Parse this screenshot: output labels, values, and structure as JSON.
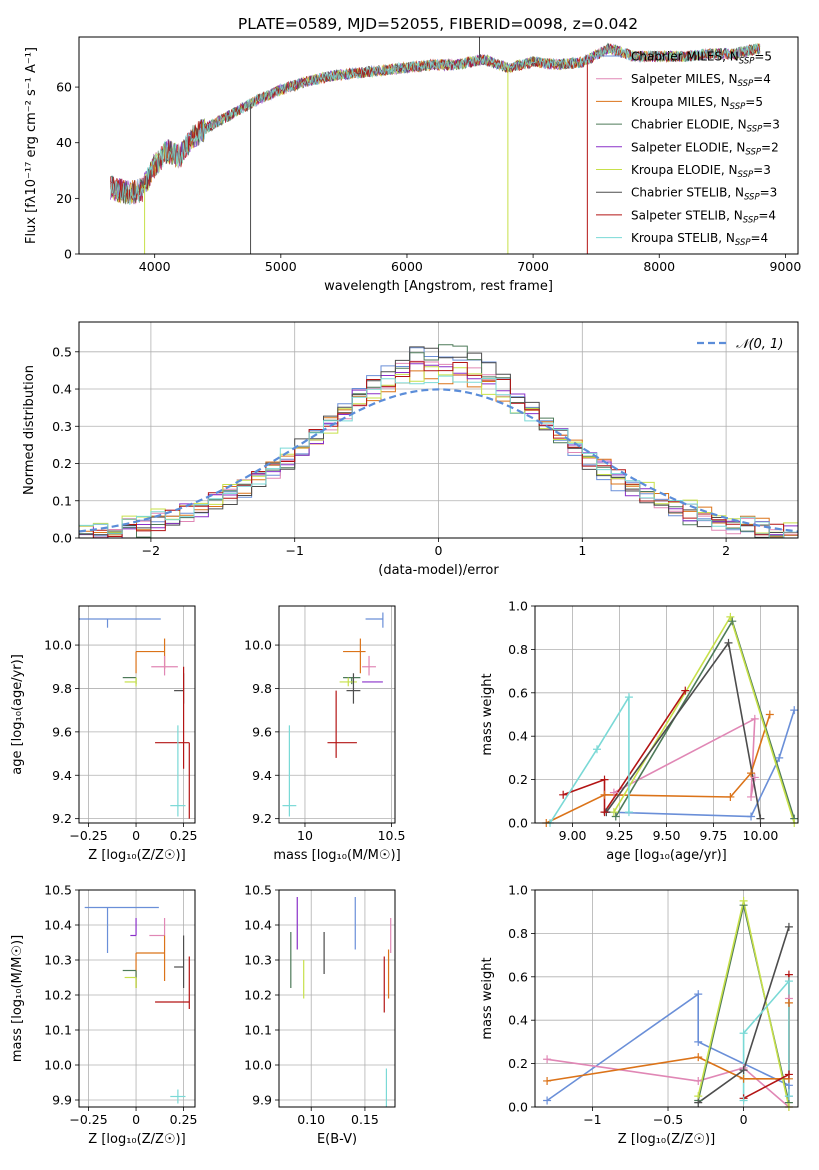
{
  "title": "PLATE=0589, MJD=52055, FIBERID=0098, z=0.042",
  "colors": {
    "Chabrier MILES": "#6a8fd8",
    "Salpeter MILES": "#e087b5",
    "Kroupa MILES": "#db7319",
    "Chabrier ELODIE": "#4d7a59",
    "Salpeter ELODIE": "#8a30c9",
    "Kroupa ELODIE": "#c7e04a",
    "Chabrier STELIB": "#4d4d4d",
    "Salpeter STELIB": "#b31414",
    "Kroupa STELIB": "#7ad9d6",
    "normal_curve": "#5b8dd9",
    "grid": "#b0b0b0"
  },
  "legend_spectrum": [
    {
      "label": "Chabrier MILES, N",
      "sub": "SSP",
      "suffix": "=5",
      "model": "Chabrier MILES"
    },
    {
      "label": "Salpeter MILES, N",
      "sub": "SSP",
      "suffix": "=4",
      "model": "Salpeter MILES"
    },
    {
      "label": "Kroupa MILES, N",
      "sub": "SSP",
      "suffix": "=5",
      "model": "Kroupa MILES"
    },
    {
      "label": "Chabrier ELODIE, N",
      "sub": "SSP",
      "suffix": "=3",
      "model": "Chabrier ELODIE"
    },
    {
      "label": "Salpeter ELODIE, N",
      "sub": "SSP",
      "suffix": "=2",
      "model": "Salpeter ELODIE"
    },
    {
      "label": "Kroupa ELODIE, N",
      "sub": "SSP",
      "suffix": "=3",
      "model": "Kroupa ELODIE"
    },
    {
      "label": "Chabrier STELIB, N",
      "sub": "SSP",
      "suffix": "=3",
      "model": "Chabrier STELIB"
    },
    {
      "label": "Salpeter STELIB, N",
      "sub": "SSP",
      "suffix": "=4",
      "model": "Salpeter STELIB"
    },
    {
      "label": "Kroupa STELIB, N",
      "sub": "SSP",
      "suffix": "=4",
      "model": "Kroupa STELIB"
    }
  ],
  "chart_data": [
    {
      "id": "spectrum",
      "type": "line",
      "xlabel": "wavelength [Angstrom, rest frame]",
      "ylabel": "Flux [fλ10⁻¹⁷ erg cm⁻² s⁻¹ A⁻¹]",
      "xlim": [
        3400,
        9100
      ],
      "ylim": [
        0,
        78
      ],
      "xticks": [
        4000,
        5000,
        6000,
        7000,
        8000,
        9000
      ],
      "yticks": [
        0,
        20,
        40,
        60
      ],
      "grid": false,
      "legend_position": "top-right",
      "continuum": {
        "x": [
          3650,
          3700,
          3800,
          3900,
          4000,
          4100,
          4200,
          4300,
          4400,
          4600,
          4800,
          5000,
          5200,
          5400,
          5600,
          5800,
          6000,
          6200,
          6400,
          6600,
          6800,
          7000,
          7200,
          7400,
          7600,
          7800,
          8000,
          8200,
          8400,
          8600,
          8800
        ],
        "y": [
          24,
          23,
          22,
          23,
          32,
          37,
          35,
          42,
          45,
          50,
          55,
          59,
          62,
          64,
          65,
          66,
          67,
          68,
          68,
          70,
          67,
          69,
          68,
          69,
          74,
          71,
          71,
          71,
          72,
          72,
          74
        ]
      },
      "dips": [
        {
          "model": "Kroupa ELODIE",
          "x": 3920,
          "y": 0
        },
        {
          "model": "Chabrier STELIB",
          "x": 4760,
          "y": 0
        },
        {
          "model": "Kroupa ELODIE",
          "x": 6800,
          "y": 0
        },
        {
          "model": "Salpeter STELIB",
          "x": 7430,
          "y": 0
        },
        {
          "model": "Chabrier STELIB",
          "x": 6575,
          "y": 78
        }
      ]
    },
    {
      "id": "residuals",
      "type": "histogram",
      "xlabel": "(data-model)/error",
      "ylabel": "Normed distribution",
      "xlim": [
        -2.5,
        2.5
      ],
      "ylim": [
        0,
        0.58
      ],
      "xticks": [
        -2,
        -1,
        0,
        1,
        2
      ],
      "yticks": [
        0.0,
        0.1,
        0.2,
        0.3,
        0.4,
        0.5
      ],
      "grid": true,
      "legend": "𝒩(0, 1)",
      "legend_position": "top-right",
      "normal_curve": {
        "mean": 0,
        "sigma": 1
      }
    },
    {
      "id": "age_vs_Z",
      "type": "errorbar",
      "xlabel": "Z [log₁₀(Z/Z☉)]",
      "ylabel": "age  [log₁₀(age/yr)]",
      "xlim": [
        -0.3,
        0.31
      ],
      "ylim": [
        9.18,
        10.18
      ],
      "xticks": [
        -0.25,
        0.0,
        0.25
      ],
      "yticks": [
        9.2,
        9.4,
        9.6,
        9.8,
        10.0
      ],
      "grid": true,
      "points": [
        {
          "model": "Chabrier MILES",
          "x": -0.15,
          "xerr": [
            0.27,
            0.28
          ],
          "y": 10.12,
          "yerr": [
            0.04,
            0.0
          ]
        },
        {
          "model": "Kroupa MILES",
          "x": 0.0,
          "xerr": [
            0.0,
            0.15
          ],
          "y": 9.97,
          "yerr": [
            0.1,
            0.0
          ]
        },
        {
          "model": "Kroupa MILES",
          "x": 0.15,
          "xerr": [
            0.0,
            0.0
          ],
          "y": 9.97,
          "yerr": [
            0.08,
            0.06
          ]
        },
        {
          "model": "Salpeter MILES",
          "x": 0.15,
          "xerr": [
            0.07,
            0.07
          ],
          "y": 9.9,
          "yerr": [
            0.04,
            0.05
          ]
        },
        {
          "model": "Chabrier ELODIE",
          "x": 0.0,
          "xerr": [
            0.07,
            0.0
          ],
          "y": 9.85,
          "yerr": [
            0.03,
            0.0
          ]
        },
        {
          "model": "Kroupa ELODIE",
          "x": 0.0,
          "xerr": [
            0.06,
            0.0
          ],
          "y": 9.83,
          "yerr": [
            0.02,
            0.02
          ]
        },
        {
          "model": "Chabrier STELIB",
          "x": 0.25,
          "xerr": [
            0.05,
            0.0
          ],
          "y": 9.79,
          "yerr": [
            0.06,
            0.08
          ]
        },
        {
          "model": "Salpeter STELIB",
          "x": 0.25,
          "xerr": [
            0.15,
            0.03
          ],
          "y": 9.55,
          "yerr": [
            0.12,
            0.35
          ]
        },
        {
          "model": "Salpeter STELIB",
          "x": 0.28,
          "xerr": [
            0.0,
            0.0
          ],
          "y": 9.55,
          "yerr": [
            0.35,
            0.0
          ]
        },
        {
          "model": "Kroupa STELIB",
          "x": 0.22,
          "xerr": [
            0.04,
            0.04
          ],
          "y": 9.26,
          "yerr": [
            0.05,
            0.37
          ]
        }
      ]
    },
    {
      "id": "age_vs_mass",
      "type": "errorbar",
      "xlabel": "mass [log₁₀(M/M☉)]",
      "ylabel": "",
      "xlim": [
        9.85,
        10.52
      ],
      "ylim": [
        9.18,
        10.18
      ],
      "xticks": [
        10.0,
        10.5
      ],
      "yticks": [
        9.2,
        9.4,
        9.6,
        9.8,
        10.0
      ],
      "grid": true,
      "points": [
        {
          "model": "Chabrier MILES",
          "x": 10.45,
          "xerr": [
            0.1,
            0.0
          ],
          "y": 10.12,
          "yerr": [
            0.04,
            0.03
          ]
        },
        {
          "model": "Kroupa MILES",
          "x": 10.32,
          "xerr": [
            0.1,
            0.03
          ],
          "y": 9.97,
          "yerr": [
            0.1,
            0.06
          ]
        },
        {
          "model": "Salpeter MILES",
          "x": 10.37,
          "xerr": [
            0.04,
            0.04
          ],
          "y": 9.9,
          "yerr": [
            0.04,
            0.05
          ]
        },
        {
          "model": "Salpeter ELODIE",
          "x": 10.37,
          "xerr": [
            0.04,
            0.08
          ],
          "y": 9.83,
          "yerr": [
            0.0,
            0.0
          ]
        },
        {
          "model": "Chabrier ELODIE",
          "x": 10.27,
          "xerr": [
            0.05,
            0.05
          ],
          "y": 9.85,
          "yerr": [
            0.03,
            0.0
          ]
        },
        {
          "model": "Kroupa ELODIE",
          "x": 10.25,
          "xerr": [
            0.05,
            0.05
          ],
          "y": 9.83,
          "yerr": [
            0.02,
            0.02
          ]
        },
        {
          "model": "Chabrier STELIB",
          "x": 10.28,
          "xerr": [
            0.04,
            0.04
          ],
          "y": 9.79,
          "yerr": [
            0.06,
            0.08
          ]
        },
        {
          "model": "Salpeter STELIB",
          "x": 10.18,
          "xerr": [
            0.05,
            0.12
          ],
          "y": 9.55,
          "yerr": [
            0.07,
            0.24
          ]
        },
        {
          "model": "Kroupa STELIB",
          "x": 9.91,
          "xerr": [
            0.04,
            0.04
          ],
          "y": 9.26,
          "yerr": [
            0.05,
            0.37
          ]
        }
      ]
    },
    {
      "id": "massweight_vs_age",
      "type": "line",
      "xlabel": "age  [log₁₀(age/yr)]",
      "ylabel": "mass weight",
      "xlim": [
        8.8,
        10.2
      ],
      "ylim": [
        0,
        1.0
      ],
      "xticks": [
        9.0,
        9.25,
        9.5,
        9.75,
        10.0
      ],
      "xtick_labels": [
        "9.00",
        "9.25",
        "9.50",
        "9.75",
        "10.00"
      ],
      "yticks": [
        0.0,
        0.2,
        0.4,
        0.6,
        0.8,
        1.0
      ],
      "grid": true,
      "series": [
        {
          "model": "Chabrier MILES",
          "x": [
            9.18,
            9.95,
            10.1,
            10.18
          ],
          "y": [
            0.05,
            0.03,
            0.3,
            0.52
          ]
        },
        {
          "model": "Salpeter MILES",
          "x": [
            9.22,
            9.97,
            9.95,
            9.97
          ],
          "y": [
            0.14,
            0.48,
            0.12,
            0.21
          ]
        },
        {
          "model": "Kroupa MILES",
          "x": [
            8.86,
            9.17,
            9.84,
            9.95,
            10.05
          ],
          "y": [
            0.0,
            0.13,
            0.12,
            0.23,
            0.5
          ]
        },
        {
          "model": "Chabrier ELODIE",
          "x": [
            9.23,
            9.85,
            10.18
          ],
          "y": [
            0.03,
            0.93,
            0.02
          ]
        },
        {
          "model": "Kroupa ELODIE",
          "x": [
            9.22,
            9.84,
            10.18
          ],
          "y": [
            0.05,
            0.95,
            0.0
          ]
        },
        {
          "model": "Chabrier STELIB",
          "x": [
            9.18,
            9.83,
            10.0
          ],
          "y": [
            0.05,
            0.83,
            0.02
          ]
        },
        {
          "model": "Salpeter STELIB",
          "x": [
            8.95,
            9.17,
            9.17,
            9.6
          ],
          "y": [
            0.13,
            0.2,
            0.05,
            0.61
          ]
        },
        {
          "model": "Kroupa STELIB",
          "x": [
            8.88,
            9.13,
            9.3,
            9.3
          ],
          "y": [
            0.0,
            0.34,
            0.58,
            0.05
          ]
        }
      ]
    },
    {
      "id": "mass_vs_Z",
      "type": "errorbar",
      "xlabel": "Z [log₁₀(Z/Z☉)]",
      "ylabel": "mass [log₁₀(M/M☉)]",
      "xlim": [
        -0.3,
        0.31
      ],
      "ylim": [
        9.88,
        10.5
      ],
      "xticks": [
        -0.25,
        0.0,
        0.25
      ],
      "yticks": [
        9.9,
        10.0,
        10.1,
        10.2,
        10.3,
        10.4,
        10.5
      ],
      "grid": true,
      "points": [
        {
          "model": "Chabrier MILES",
          "x": -0.15,
          "xerr": [
            0.12,
            0.27
          ],
          "y": 10.45,
          "yerr": [
            0.13,
            0.0
          ]
        },
        {
          "model": "Salpeter MILES",
          "x": 0.15,
          "xerr": [
            0.08,
            0.0
          ],
          "y": 10.37,
          "yerr": [
            0.0,
            0.05
          ]
        },
        {
          "model": "Kroupa MILES",
          "x": 0.0,
          "xerr": [
            0.0,
            0.15
          ],
          "y": 10.32,
          "yerr": [
            0.1,
            0.0
          ]
        },
        {
          "model": "Kroupa MILES",
          "x": 0.15,
          "xerr": [
            0.0,
            0.0
          ],
          "y": 10.32,
          "yerr": [
            0.08,
            0.05
          ]
        },
        {
          "model": "Salpeter ELODIE",
          "x": 0.0,
          "xerr": [
            0.03,
            0.0
          ],
          "y": 10.37,
          "yerr": [
            0.0,
            0.05
          ]
        },
        {
          "model": "Chabrier ELODIE",
          "x": 0.0,
          "xerr": [
            0.07,
            0.0
          ],
          "y": 10.27,
          "yerr": [
            0.05,
            0.0
          ]
        },
        {
          "model": "Kroupa ELODIE",
          "x": 0.0,
          "xerr": [
            0.06,
            0.0
          ],
          "y": 10.25,
          "yerr": [
            0.03,
            0.0
          ]
        },
        {
          "model": "Chabrier STELIB",
          "x": 0.25,
          "xerr": [
            0.05,
            0.0
          ],
          "y": 10.28,
          "yerr": [
            0.06,
            0.09
          ]
        },
        {
          "model": "Salpeter STELIB",
          "x": 0.25,
          "xerr": [
            0.15,
            0.03
          ],
          "y": 10.18,
          "yerr": [
            0.0,
            0.0
          ]
        },
        {
          "model": "Salpeter STELIB",
          "x": 0.28,
          "xerr": [
            0.0,
            0.0
          ],
          "y": 10.18,
          "yerr": [
            0.02,
            0.13
          ]
        },
        {
          "model": "Kroupa STELIB",
          "x": 0.22,
          "xerr": [
            0.04,
            0.04
          ],
          "y": 9.91,
          "yerr": [
            0.02,
            0.02
          ]
        }
      ]
    },
    {
      "id": "mass_vs_EBV",
      "type": "errorbar",
      "xlabel": "E(B-V)",
      "ylabel": "",
      "xlim": [
        0.07,
        0.178
      ],
      "ylim": [
        9.88,
        10.5
      ],
      "xticks": [
        0.1,
        0.15
      ],
      "xtick_labels": [
        "0.10",
        "0.15"
      ],
      "yticks": [
        9.9,
        10.0,
        10.1,
        10.2,
        10.3,
        10.4,
        10.5
      ],
      "grid": true,
      "points": [
        {
          "model": "Chabrier ELODIE",
          "x": 0.081,
          "yerr": [
            0.06,
            0.1
          ],
          "y": 10.28
        },
        {
          "model": "Salpeter ELODIE",
          "x": 0.087,
          "yerr": [
            0.06,
            0.09
          ],
          "y": 10.39
        },
        {
          "model": "Kroupa ELODIE",
          "x": 0.093,
          "yerr": [
            0.05,
            0.06
          ],
          "y": 10.24
        },
        {
          "model": "Chabrier STELIB",
          "x": 0.112,
          "yerr": [
            0.06,
            0.06
          ],
          "y": 10.32
        },
        {
          "model": "Chabrier MILES",
          "x": 0.141,
          "yerr": [
            0.07,
            0.08
          ],
          "y": 10.4
        },
        {
          "model": "Salpeter MILES",
          "x": 0.174,
          "yerr": [
            0.05,
            0.05
          ],
          "y": 10.37
        },
        {
          "model": "Salpeter STELIB",
          "x": 0.168,
          "yerr": [
            0.08,
            0.08
          ],
          "y": 10.23
        },
        {
          "model": "Kroupa MILES",
          "x": 0.172,
          "yerr": [
            0.06,
            0.08
          ],
          "y": 10.25
        },
        {
          "model": "Kroupa STELIB",
          "x": 0.17,
          "yerr": [
            0.06,
            0.06
          ],
          "y": 9.93
        }
      ]
    },
    {
      "id": "massweight_vs_Z",
      "type": "line",
      "xlabel": "Z [log₁₀(Z/Z☉)]",
      "ylabel": "mass weight",
      "xlim": [
        -1.38,
        0.36
      ],
      "ylim": [
        0,
        1.0
      ],
      "xticks": [
        -1.0,
        -0.5,
        0.0
      ],
      "yticks": [
        0.0,
        0.2,
        0.4,
        0.6,
        0.8,
        1.0
      ],
      "grid": true,
      "series": [
        {
          "model": "Chabrier MILES",
          "x": [
            -1.3,
            -0.3,
            -0.3,
            0.3,
            0.3
          ],
          "y": [
            0.03,
            0.52,
            0.3,
            0.1,
            0.05
          ]
        },
        {
          "model": "Salpeter MILES",
          "x": [
            -1.3,
            -0.3,
            0.0,
            0.3,
            0.3
          ],
          "y": [
            0.22,
            0.12,
            0.18,
            0.0,
            0.5
          ]
        },
        {
          "model": "Kroupa MILES",
          "x": [
            -1.3,
            -0.3,
            0.0,
            0.3,
            0.3
          ],
          "y": [
            0.12,
            0.23,
            0.13,
            0.13,
            0.48
          ]
        },
        {
          "model": "Chabrier ELODIE",
          "x": [
            -0.3,
            0.0,
            0.3
          ],
          "y": [
            0.03,
            0.93,
            0.02
          ]
        },
        {
          "model": "Kroupa ELODIE",
          "x": [
            -0.3,
            0.0,
            0.3
          ],
          "y": [
            0.05,
            0.95,
            0.0
          ]
        },
        {
          "model": "Chabrier STELIB",
          "x": [
            -0.3,
            0.0,
            0.3
          ],
          "y": [
            0.02,
            0.17,
            0.83
          ]
        },
        {
          "model": "Salpeter STELIB",
          "x": [
            0.0,
            0.3,
            0.3
          ],
          "y": [
            0.04,
            0.15,
            0.61
          ]
        },
        {
          "model": "Kroupa STELIB",
          "x": [
            0.0,
            0.0,
            0.3,
            0.3
          ],
          "y": [
            0.03,
            0.34,
            0.58,
            0.05
          ]
        }
      ]
    }
  ]
}
